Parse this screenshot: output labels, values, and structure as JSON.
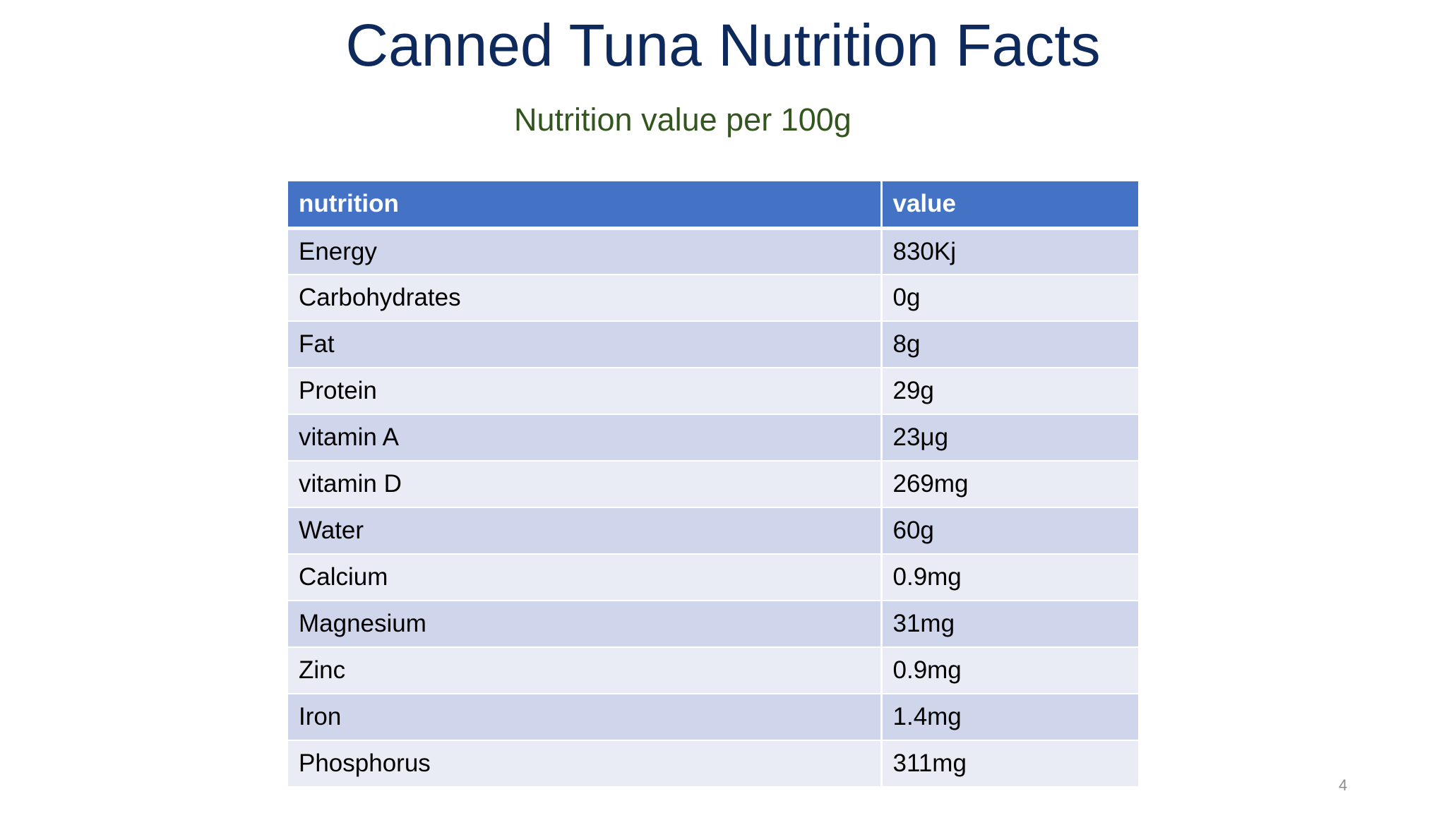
{
  "slide": {
    "title": "Canned Tuna Nutrition Facts",
    "subtitle": "Nutrition value per 100g",
    "page_number": "4",
    "colors": {
      "title": "#0e2a5c",
      "subtitle": "#33561f",
      "header_bg": "#4472c4",
      "row_odd_bg": "#cfd5ea",
      "row_even_bg": "#e9ebf5"
    }
  },
  "table": {
    "headers": [
      "nutrition",
      "value"
    ],
    "rows": [
      [
        "Energy",
        "830Kj"
      ],
      [
        "Carbohydrates",
        "0g"
      ],
      [
        "Fat",
        "8g"
      ],
      [
        "Protein",
        "29g"
      ],
      [
        "vitamin A",
        "23μg"
      ],
      [
        "vitamin D",
        "269mg"
      ],
      [
        "Water",
        "60g"
      ],
      [
        "Calcium",
        "0.9mg"
      ],
      [
        "Magnesium",
        "31mg"
      ],
      [
        "Zinc",
        "0.9mg"
      ],
      [
        "Iron",
        "1.4mg"
      ],
      [
        "Phosphorus",
        "311mg"
      ]
    ]
  }
}
